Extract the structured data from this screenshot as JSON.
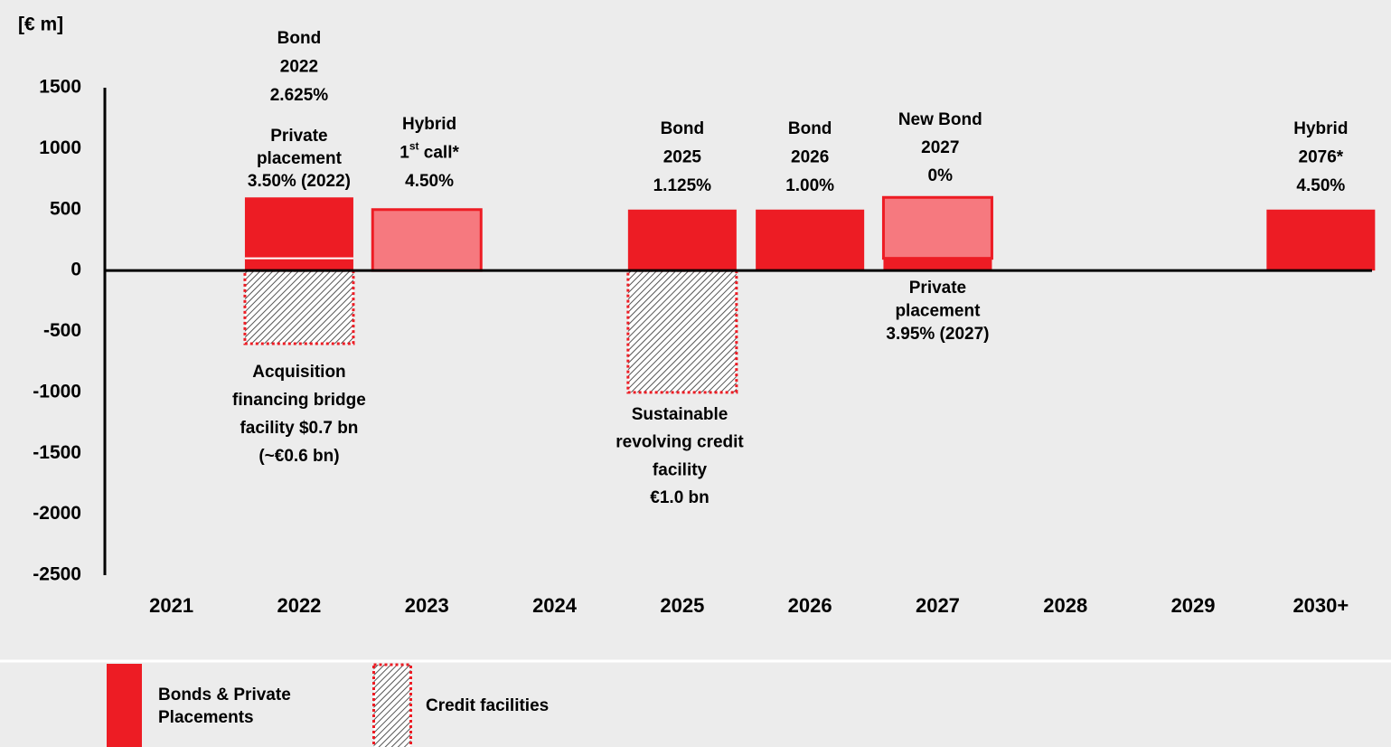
{
  "chart_data": {
    "type": "bar",
    "y_label": "[€ m]",
    "categories": [
      "2021",
      "2022",
      "2023",
      "2024",
      "2025",
      "2026",
      "2027",
      "2028",
      "2029",
      "2030+"
    ],
    "ylim": [
      -2500,
      1500
    ],
    "yticks": [
      -2500,
      -2000,
      -1500,
      -1000,
      -500,
      0,
      500,
      1000,
      1500
    ],
    "grid": false,
    "series": [
      {
        "name": "Bonds & Private Placements",
        "color": "#ed1c24",
        "values": [
          null,
          100,
          null,
          null,
          500,
          500,
          100,
          null,
          null,
          500
        ]
      },
      {
        "color": "#ed1c24",
        "values": [
          null,
          500,
          null,
          null,
          null,
          null,
          null,
          null,
          null,
          null
        ]
      },
      {
        "color": "#f6797f",
        "outline": "#ed1c24",
        "values": [
          null,
          null,
          500,
          null,
          null,
          null,
          500,
          null,
          null,
          null
        ]
      },
      {
        "name": "Credit facilities",
        "color": "#ed1c24",
        "pattern": "hatch",
        "values": [
          null,
          -600,
          null,
          null,
          -1000,
          null,
          null,
          null,
          null,
          null
        ]
      }
    ],
    "annotations": [
      {
        "lines": [
          "Bond",
          "2022",
          "2.625%"
        ]
      },
      {
        "lines": [
          "Private",
          "placement",
          "3.50% (2022)"
        ]
      },
      {
        "lines": [
          "Hybrid",
          [
            {
              "t": "1"
            },
            {
              "t": "st",
              "sup": true
            },
            {
              "t": " call*"
            }
          ],
          "4.50%"
        ]
      },
      {
        "lines": [
          "Bond",
          "2025",
          "1.125%"
        ]
      },
      {
        "lines": [
          "Bond",
          "2026",
          "1.00%"
        ]
      },
      {
        "lines": [
          "New Bond",
          "2027",
          "0%"
        ],
        "color": "#ed1c24"
      },
      {
        "lines": [
          "Hybrid",
          "2076*",
          "4.50%"
        ]
      },
      {
        "lines": [
          "Private",
          "placement",
          "3.95% (2027)"
        ]
      },
      {
        "lines": [
          "Acquisition",
          "financing bridge",
          "facility $0.7 bn",
          "(~€0.6 bn)"
        ]
      },
      {
        "lines": [
          "Sustainable",
          "revolving credit",
          "facility",
          "€1.0 bn"
        ]
      }
    ]
  }
}
